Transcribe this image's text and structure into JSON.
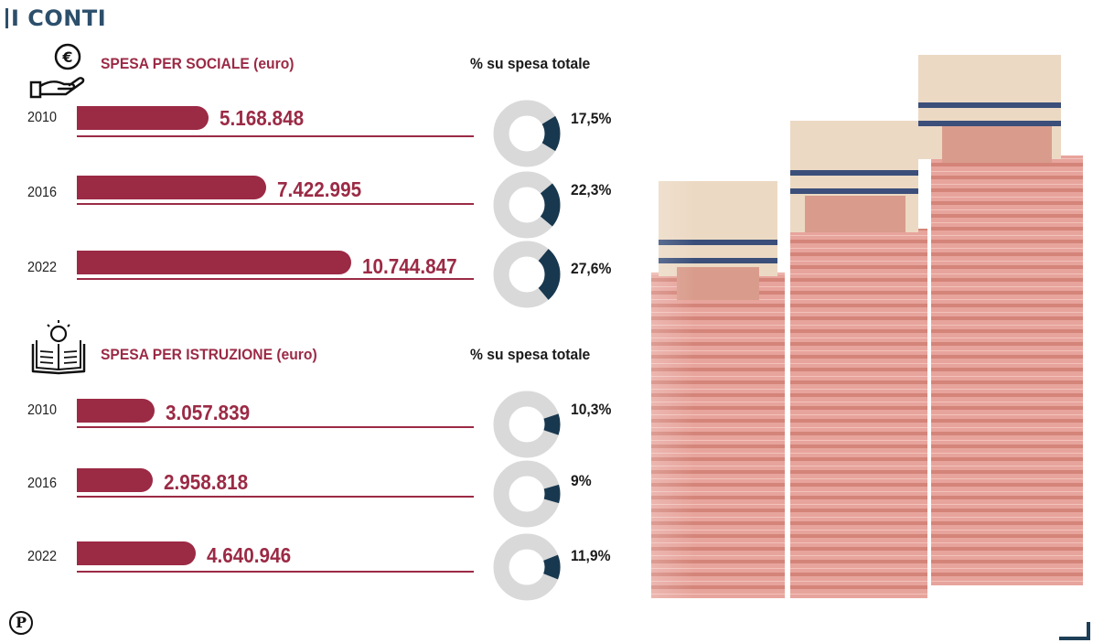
{
  "header": {
    "title": "I CONTI"
  },
  "colors": {
    "bar": "#9b2a45",
    "title": "#2c4f6b",
    "donut_track": "#d9d9d9",
    "donut_fill": "#18384f",
    "baseline": "#9b2a45"
  },
  "icons": {
    "social": "hand-euro-coin-icon",
    "education": "book-lightbulb-icon"
  },
  "publisher_mark": "P",
  "chart_data": [
    {
      "type": "bar",
      "title": "SPESA PER SOCIALE (euro)",
      "percent_header": "% su spesa totale",
      "categories": [
        "2010",
        "2016",
        "2022"
      ],
      "values": [
        5168848,
        7422995,
        10744847
      ],
      "value_labels": [
        "5.168.848",
        "7.422.995",
        "10.744.847"
      ],
      "percent_values": [
        17.5,
        22.3,
        27.6
      ],
      "percent_labels": [
        "17,5%",
        "22,3%",
        "27,6%"
      ]
    },
    {
      "type": "bar",
      "title": "SPESA PER ISTRUZIONE (euro)",
      "percent_header": "% su spesa totale",
      "categories": [
        "2010",
        "2016",
        "2022"
      ],
      "values": [
        3057839,
        2958818,
        4640946
      ],
      "value_labels": [
        "3.057.839",
        "2.958.818",
        "4.640.946"
      ],
      "percent_values": [
        10.3,
        9,
        11.9
      ],
      "percent_labels": [
        "10,3%",
        "9%",
        "11,9%"
      ]
    }
  ]
}
